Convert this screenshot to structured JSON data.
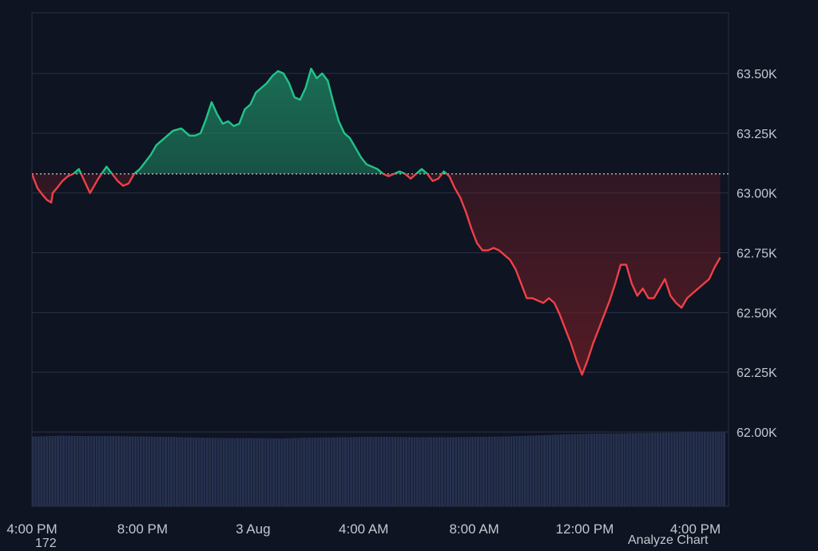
{
  "chart_data": {
    "type": "area",
    "title": "",
    "xlabel": "",
    "ylabel": "",
    "baseline_value": 63080,
    "ylim": [
      62000,
      63720
    ],
    "y_ticks": [
      {
        "value": 62000,
        "label": "62.00K"
      },
      {
        "value": 62250,
        "label": "62.25K"
      },
      {
        "value": 62500,
        "label": "62.50K"
      },
      {
        "value": 62750,
        "label": "62.75K"
      },
      {
        "value": 63000,
        "label": "63.00K"
      },
      {
        "value": 63250,
        "label": "63.25K"
      },
      {
        "value": 63500,
        "label": "63.50K"
      }
    ],
    "x_ticks": [
      {
        "t": 0,
        "label": "4:00 PM"
      },
      {
        "t": 4,
        "label": "8:00 PM"
      },
      {
        "t": 8,
        "label": "3 Aug"
      },
      {
        "t": 12,
        "label": "4:00 AM"
      },
      {
        "t": 16,
        "label": "8:00 AM"
      },
      {
        "t": 20,
        "label": "12:00 PM"
      },
      {
        "t": 24,
        "label": "4:00 PM"
      }
    ],
    "xlim": [
      0,
      25.2
    ],
    "price": [
      [
        0,
        63080
      ],
      [
        0.2,
        63020
      ],
      [
        0.4,
        62990
      ],
      [
        0.55,
        62970
      ],
      [
        0.7,
        62960
      ],
      [
        0.75,
        63000
      ],
      [
        0.9,
        63020
      ],
      [
        1.1,
        63050
      ],
      [
        1.3,
        63070
      ],
      [
        1.5,
        63080
      ],
      [
        1.7,
        63100
      ],
      [
        1.9,
        63050
      ],
      [
        2.1,
        63000
      ],
      [
        2.4,
        63060
      ],
      [
        2.7,
        63110
      ],
      [
        2.9,
        63080
      ],
      [
        3.1,
        63050
      ],
      [
        3.3,
        63030
      ],
      [
        3.5,
        63040
      ],
      [
        3.7,
        63080
      ],
      [
        3.9,
        63100
      ],
      [
        4.1,
        63130
      ],
      [
        4.3,
        63160
      ],
      [
        4.5,
        63200
      ],
      [
        4.8,
        63230
      ],
      [
        5.1,
        63260
      ],
      [
        5.4,
        63270
      ],
      [
        5.7,
        63240
      ],
      [
        5.9,
        63240
      ],
      [
        6.1,
        63250
      ],
      [
        6.3,
        63310
      ],
      [
        6.5,
        63380
      ],
      [
        6.7,
        63330
      ],
      [
        6.9,
        63290
      ],
      [
        7.1,
        63300
      ],
      [
        7.3,
        63280
      ],
      [
        7.5,
        63290
      ],
      [
        7.7,
        63350
      ],
      [
        7.9,
        63370
      ],
      [
        8.1,
        63420
      ],
      [
        8.3,
        63440
      ],
      [
        8.5,
        63460
      ],
      [
        8.7,
        63490
      ],
      [
        8.9,
        63510
      ],
      [
        9.1,
        63500
      ],
      [
        9.3,
        63460
      ],
      [
        9.5,
        63400
      ],
      [
        9.7,
        63390
      ],
      [
        9.9,
        63440
      ],
      [
        10.1,
        63520
      ],
      [
        10.3,
        63480
      ],
      [
        10.5,
        63500
      ],
      [
        10.7,
        63470
      ],
      [
        10.9,
        63380
      ],
      [
        11.1,
        63300
      ],
      [
        11.3,
        63250
      ],
      [
        11.5,
        63230
      ],
      [
        11.7,
        63190
      ],
      [
        11.9,
        63150
      ],
      [
        12.1,
        63120
      ],
      [
        12.3,
        63110
      ],
      [
        12.5,
        63100
      ],
      [
        12.7,
        63080
      ],
      [
        12.9,
        63070
      ],
      [
        13.1,
        63080
      ],
      [
        13.3,
        63090
      ],
      [
        13.5,
        63080
      ],
      [
        13.7,
        63060
      ],
      [
        13.9,
        63080
      ],
      [
        14.1,
        63100
      ],
      [
        14.3,
        63080
      ],
      [
        14.5,
        63050
      ],
      [
        14.7,
        63060
      ],
      [
        14.9,
        63090
      ],
      [
        15.1,
        63070
      ],
      [
        15.3,
        63020
      ],
      [
        15.5,
        62980
      ],
      [
        15.7,
        62920
      ],
      [
        15.9,
        62850
      ],
      [
        16.1,
        62790
      ],
      [
        16.3,
        62760
      ],
      [
        16.5,
        62760
      ],
      [
        16.7,
        62770
      ],
      [
        16.9,
        62760
      ],
      [
        17.1,
        62740
      ],
      [
        17.3,
        62720
      ],
      [
        17.5,
        62680
      ],
      [
        17.7,
        62620
      ],
      [
        17.9,
        62560
      ],
      [
        18.1,
        62560
      ],
      [
        18.3,
        62550
      ],
      [
        18.5,
        62540
      ],
      [
        18.7,
        62560
      ],
      [
        18.9,
        62540
      ],
      [
        19.1,
        62490
      ],
      [
        19.3,
        62430
      ],
      [
        19.5,
        62370
      ],
      [
        19.7,
        62300
      ],
      [
        19.9,
        62240
      ],
      [
        20.1,
        62300
      ],
      [
        20.3,
        62370
      ],
      [
        20.5,
        62430
      ],
      [
        20.7,
        62490
      ],
      [
        20.9,
        62550
      ],
      [
        21.1,
        62620
      ],
      [
        21.3,
        62700
      ],
      [
        21.5,
        62700
      ],
      [
        21.7,
        62620
      ],
      [
        21.9,
        62570
      ],
      [
        22.1,
        62600
      ],
      [
        22.3,
        62560
      ],
      [
        22.5,
        62560
      ],
      [
        22.7,
        62600
      ],
      [
        22.9,
        62640
      ],
      [
        23.1,
        62570
      ],
      [
        23.3,
        62540
      ],
      [
        23.5,
        62520
      ],
      [
        23.7,
        62560
      ],
      [
        23.9,
        62580
      ],
      [
        24.1,
        62600
      ],
      [
        24.3,
        62620
      ],
      [
        24.5,
        62640
      ],
      [
        24.7,
        62690
      ],
      [
        24.9,
        62730
      ]
    ],
    "volume": [
      [
        0,
        0.92
      ],
      [
        1,
        0.93
      ],
      [
        2,
        0.925
      ],
      [
        3,
        0.925
      ],
      [
        4,
        0.92
      ],
      [
        5,
        0.915
      ],
      [
        6,
        0.905
      ],
      [
        7,
        0.9
      ],
      [
        8,
        0.9
      ],
      [
        9,
        0.895
      ],
      [
        10,
        0.905
      ],
      [
        11,
        0.91
      ],
      [
        12,
        0.915
      ],
      [
        13,
        0.915
      ],
      [
        14,
        0.91
      ],
      [
        15,
        0.91
      ],
      [
        16,
        0.915
      ],
      [
        17,
        0.92
      ],
      [
        18,
        0.93
      ],
      [
        19,
        0.945
      ],
      [
        20,
        0.955
      ],
      [
        21,
        0.96
      ],
      [
        22,
        0.965
      ],
      [
        23,
        0.97
      ],
      [
        24,
        0.975
      ],
      [
        25.1,
        0.98
      ]
    ],
    "colors": {
      "background": "#0e1422",
      "grid": "#2a3142",
      "up_line": "#22c489",
      "down_line": "#ef4047",
      "up_fill_top": "#1f8a64",
      "down_fill_bottom": "#6b1d25",
      "baseline": "#c9ccd3",
      "volume": "#26314f",
      "axis_text": "#c3c7cf"
    }
  },
  "footer": {
    "left_text": "172",
    "right_text": "Analyze Chart"
  }
}
